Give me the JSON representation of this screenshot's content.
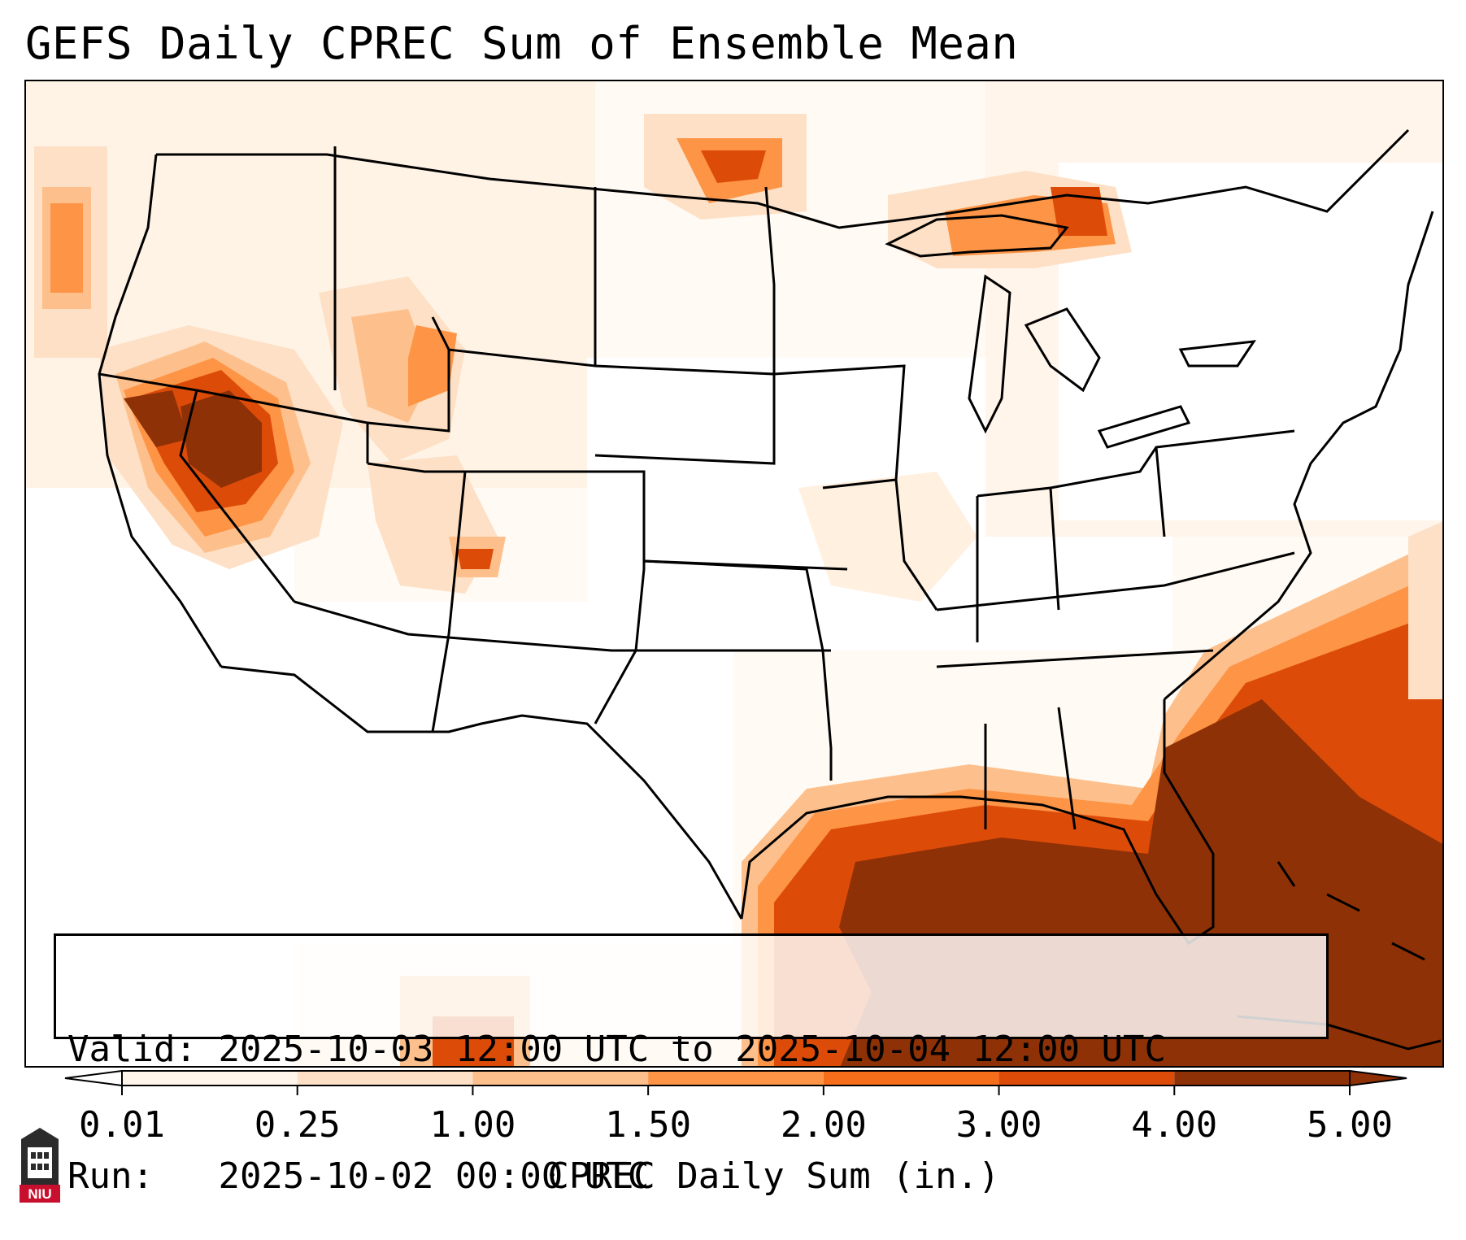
{
  "title": "GEFS Daily CPREC Sum of Ensemble Mean",
  "info": {
    "valid_label": "Valid:",
    "valid_value": "2025-10-03 12:00 UTC to 2025-10-04 12:00 UTC",
    "run_label": "Run:",
    "run_value": "2025-10-02 00:00 UTC"
  },
  "colorbar": {
    "label": "CPREC Daily Sum (in.)",
    "ticks": [
      "0.01",
      "0.25",
      "1.00",
      "1.50",
      "2.00",
      "3.00",
      "4.00",
      "5.00"
    ],
    "colors": [
      "#fff5eb",
      "#fde0c5",
      "#fdc08c",
      "#fd9446",
      "#f66d1a",
      "#dd4b09",
      "#8f3106"
    ],
    "extend": "both"
  },
  "logo": {
    "text": "NIU"
  }
}
